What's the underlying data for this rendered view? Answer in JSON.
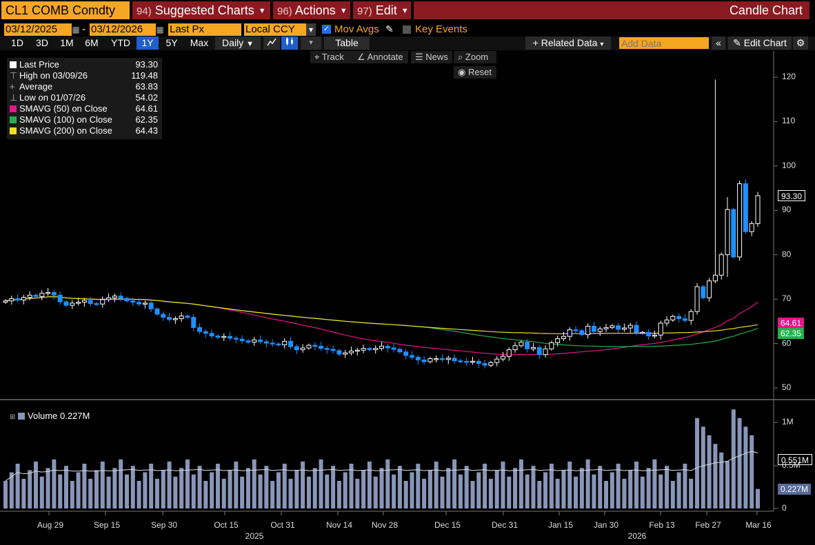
{
  "header": {
    "ticker": "CL1 COMB Comdty",
    "menus": [
      {
        "num": "94)",
        "label": "Suggested Charts"
      },
      {
        "num": "96)",
        "label": "Actions"
      },
      {
        "num": "97)",
        "label": "Edit"
      }
    ],
    "chart_title": "Candle Chart"
  },
  "controls": {
    "start_date": "03/12/2025",
    "dash": "-",
    "end_date": "03/12/2026",
    "field": "Last Px",
    "currency": "Local CCY",
    "mov_avgs": "Mov Avgs",
    "key_events": "Key Events"
  },
  "periods": [
    "1D",
    "3D",
    "1M",
    "6M",
    "YTD",
    "1Y",
    "5Y",
    "Max"
  ],
  "selected_period": "1Y",
  "frequency": "Daily",
  "table_label": "Table",
  "related_data": "+ Related Data",
  "add_data_placeholder": "Add Data",
  "edit_chart": "Edit Chart",
  "chart_tools": {
    "track": "Track",
    "annotate": "Annotate",
    "news": "News",
    "zoom": "Zoom",
    "reset": "Reset"
  },
  "legend": [
    {
      "label": "Last Price",
      "value": "93.30",
      "color": "#ffffff"
    },
    {
      "label": "High on 03/09/26",
      "value": "119.48",
      "color": ""
    },
    {
      "label": "Average",
      "value": "63.83",
      "color": ""
    },
    {
      "label": "Low on 01/07/26",
      "value": "54.02",
      "color": ""
    },
    {
      "label": "SMAVG (50)  on Close",
      "value": "64.61",
      "color": "#e6158a"
    },
    {
      "label": "SMAVG (100)  on Close",
      "value": "62.35",
      "color": "#22b14c"
    },
    {
      "label": "SMAVG (200)  on Close",
      "value": "64.43",
      "color": "#f0e020"
    }
  ],
  "volume_legend": "Volume 0.227M",
  "price_tags": {
    "last": "93.30",
    "sma50": "64.61",
    "sma100": "62.35",
    "vol_avg": "0.551M",
    "vol_last": "0.227M"
  },
  "colors": {
    "header_red": "#8b1a20",
    "orange": "#f5a623",
    "down": "#1e90ff",
    "selected_tab": "#1f5fc9",
    "volume": "#8896b8"
  },
  "chart_data": {
    "type": "candlestick",
    "title": "",
    "ylim": [
      47,
      124
    ],
    "yticks": [
      50,
      60,
      70,
      80,
      90,
      100,
      110,
      120
    ],
    "vol_ticks": [
      "1M",
      "0.5M",
      "0"
    ],
    "x_ticks": [
      "Aug 29",
      "Sep 15",
      "Sep 30",
      "Oct 15",
      "Oct 31",
      "Nov 14",
      "Nov 28",
      "Dec 15",
      "Dec 31",
      "Jan 15",
      "Jan 30",
      "Feb 13",
      "Feb 27",
      "Mar 16"
    ],
    "year_labels": [
      "2025",
      "2026"
    ],
    "closes": [
      69.6,
      70.1,
      69.8,
      70.4,
      70.9,
      70.6,
      71.3,
      71.5,
      70.9,
      69.4,
      68.6,
      69.1,
      69.3,
      69.7,
      69.0,
      68.9,
      69.9,
      70.3,
      70.7,
      70.2,
      69.6,
      69.3,
      68.9,
      69.1,
      67.8,
      66.6,
      65.9,
      65.4,
      65.6,
      66.2,
      65.9,
      63.6,
      62.7,
      62.3,
      61.7,
      61.4,
      61.6,
      61.2,
      61.0,
      60.6,
      60.3,
      60.8,
      60.4,
      60.1,
      59.9,
      59.7,
      60.5,
      59.3,
      58.6,
      59.0,
      59.6,
      59.4,
      58.9,
      58.7,
      58.4,
      57.6,
      57.9,
      58.3,
      58.5,
      58.9,
      58.6,
      58.9,
      59.4,
      59.0,
      58.7,
      58.1,
      57.3,
      56.9,
      56.3,
      55.9,
      56.6,
      56.6,
      56.4,
      56.7,
      56.1,
      56.0,
      55.8,
      56.0,
      55.5,
      55.1,
      55.7,
      56.5,
      57.1,
      58.6,
      59.5,
      60.3,
      58.8,
      59.1,
      57.5,
      58.8,
      60.2,
      61.1,
      61.6,
      63.1,
      62.9,
      62.0,
      63.9,
      62.7,
      63.3,
      63.6,
      64.0,
      63.2,
      63.5,
      64.1,
      62.5,
      62.5,
      61.7,
      61.9,
      64.6,
      65.3,
      66.1,
      65.6,
      65.2,
      67.2,
      72.8,
      70.3,
      74.1,
      75.4,
      80.0,
      90.2,
      79.5,
      96.0,
      85.2,
      87.0,
      93.3
    ],
    "sma50_end": 64.61,
    "sma100_end": 62.35,
    "sma200_end": 64.43,
    "volume_avg_last": 0.551,
    "volume_last": 0.227
  }
}
